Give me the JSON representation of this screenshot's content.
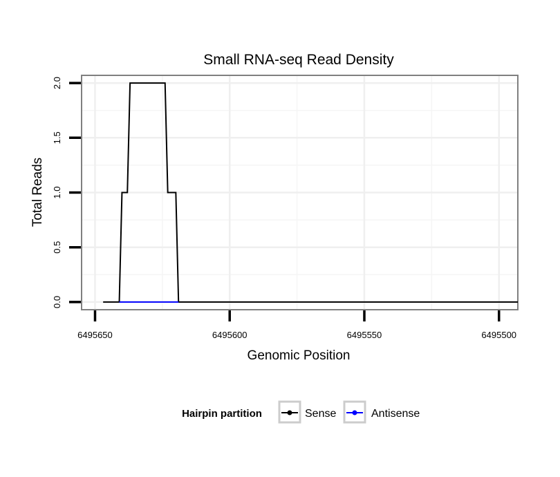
{
  "chart_data": {
    "type": "line",
    "title": "Small RNA-seq Read Density",
    "xlabel": "Genomic Position",
    "ylabel": "Total Reads",
    "xlim": [
      6495655,
      6495493
    ],
    "ylim": [
      -0.07,
      2.07
    ],
    "x_ticks": [
      6495650,
      6495600,
      6495550,
      6495500
    ],
    "x_tick_labels": [
      "6495650",
      "6495600",
      "6495550",
      "6495500"
    ],
    "y_ticks": [
      0,
      0.5,
      1.0,
      1.5,
      2.0
    ],
    "y_tick_labels": [
      "0.0",
      "0.5",
      "1.0",
      "1.5",
      "2.0"
    ],
    "grid": true,
    "legend": {
      "title": "Hairpin partition",
      "position": "bottom",
      "entries": [
        "Sense",
        "Antisense"
      ]
    },
    "series": [
      {
        "name": "Sense",
        "color": "#000000",
        "points": [
          [
            6495647,
            0
          ],
          [
            6495641,
            0
          ],
          [
            6495640,
            1
          ],
          [
            6495638,
            1
          ],
          [
            6495637,
            2
          ],
          [
            6495624,
            2
          ],
          [
            6495623,
            1
          ],
          [
            6495620,
            1
          ],
          [
            6495619,
            0
          ],
          [
            6495493,
            0
          ]
        ]
      },
      {
        "name": "Antisense",
        "color": "#0000ff",
        "points": [
          [
            6495641,
            0
          ],
          [
            6495619,
            0
          ]
        ]
      }
    ]
  }
}
